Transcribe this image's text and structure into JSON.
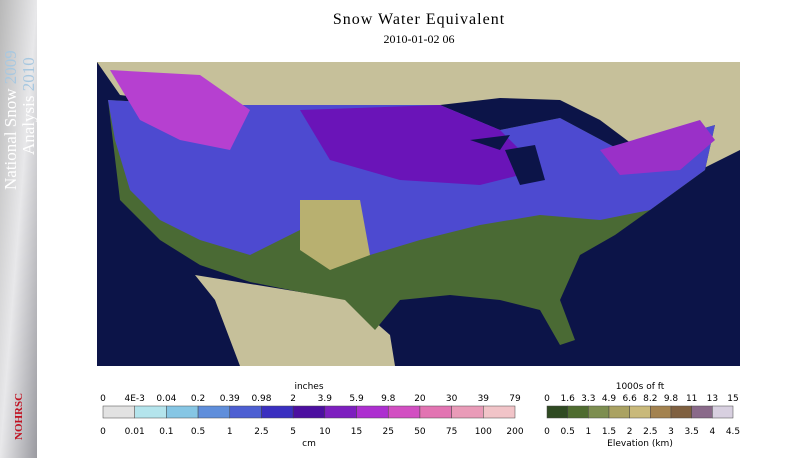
{
  "header": {
    "title": "Snow Water Equivalent",
    "subtitle": "2010-01-02 06"
  },
  "sidebar": {
    "line1": "National Snow",
    "year1": "2009",
    "line2": "Analysis",
    "year2": "2010",
    "logo": "NOHRSC"
  },
  "swe_legend": {
    "top_title": "inches",
    "bottom_title": "cm",
    "top_labels": [
      "0",
      "4E-3",
      "0.04",
      "0.2",
      "0.39",
      "0.98",
      "2",
      "3.9",
      "5.9",
      "9.8",
      "20",
      "30",
      "39",
      "79"
    ],
    "bottom_labels": [
      "0",
      "0.01",
      "0.1",
      "0.5",
      "1",
      "2.5",
      "5",
      "10",
      "15",
      "25",
      "50",
      "75",
      "100",
      "200"
    ],
    "colors": [
      "#e2e2e2",
      "#b4e4ec",
      "#86c6e4",
      "#5f8edb",
      "#4d5fd2",
      "#3a2fc0",
      "#4c0fa0",
      "#7d1fbf",
      "#ad2fd0",
      "#d24fc2",
      "#e274b2",
      "#e99bb8",
      "#f1c4c8"
    ]
  },
  "elevation_legend": {
    "top_title": "1000s of ft",
    "bottom_title": "Elevation (km)",
    "top_labels": [
      "0",
      "1.6",
      "3.3",
      "4.9",
      "6.6",
      "8.2",
      "9.8",
      "11",
      "13",
      "15"
    ],
    "bottom_labels": [
      "0",
      "0.5",
      "1",
      "1.5",
      "2",
      "2.5",
      "3",
      "3.5",
      "4",
      "4.5"
    ],
    "colors": [
      "#2f4a22",
      "#4f6c30",
      "#7d8e50",
      "#aaa262",
      "#c9b97a",
      "#a3824f",
      "#7f6040",
      "#8a6a8a",
      "#d8d0e0"
    ]
  }
}
